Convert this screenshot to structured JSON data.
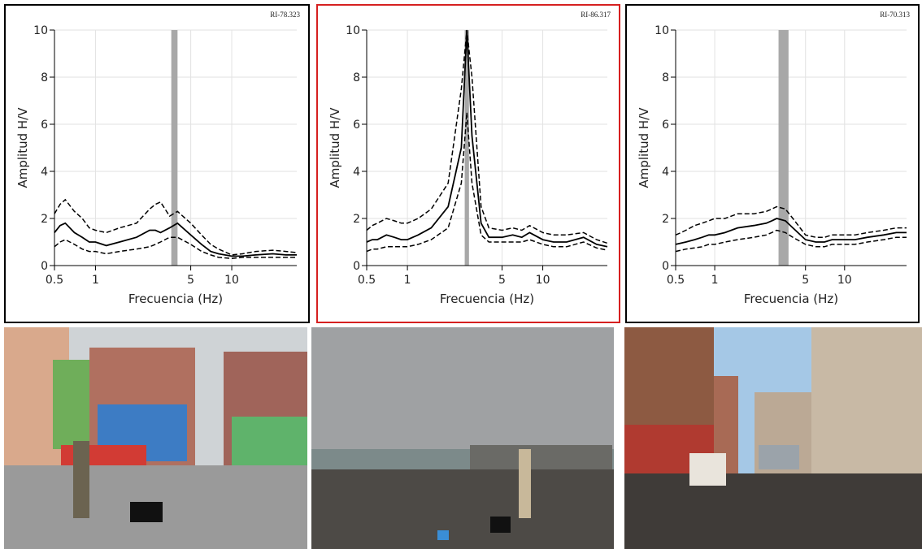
{
  "chart_data": [
    {
      "type": "line",
      "annotation": "RI-78.323",
      "x_label": "Frecuencia (Hz)",
      "y_label": "Amplitud H/V",
      "xscale": "log",
      "xlim": [
        0.5,
        30
      ],
      "xticks": [
        0.5,
        1,
        5,
        10
      ],
      "ylim": [
        0,
        10
      ],
      "yticks": [
        0,
        2,
        4,
        6,
        8,
        10
      ],
      "grid": true,
      "frame_color": "#000000",
      "band": [
        3.6,
        4.0
      ],
      "band_color": "#a8a8a8",
      "x": [
        0.5,
        0.55,
        0.6,
        0.7,
        0.8,
        0.9,
        1,
        1.2,
        1.5,
        2,
        2.5,
        2.75,
        3,
        3.5,
        4,
        5,
        6,
        7,
        8,
        10,
        12,
        15,
        20,
        25,
        30
      ],
      "series": [
        {
          "color": "#000000",
          "dash": false,
          "values": [
            1.4,
            1.7,
            1.8,
            1.4,
            1.2,
            1.0,
            1.0,
            0.85,
            1.0,
            1.2,
            1.5,
            1.5,
            1.4,
            1.6,
            1.8,
            1.3,
            0.9,
            0.6,
            0.5,
            0.4,
            0.4,
            0.45,
            0.5,
            0.45,
            0.45
          ]
        },
        {
          "color": "#000000",
          "dash": true,
          "values": [
            2.2,
            2.6,
            2.8,
            2.3,
            2.0,
            1.6,
            1.5,
            1.4,
            1.6,
            1.8,
            2.4,
            2.6,
            2.7,
            2.1,
            2.3,
            1.8,
            1.3,
            0.9,
            0.7,
            0.45,
            0.5,
            0.6,
            0.65,
            0.6,
            0.55
          ]
        },
        {
          "color": "#000000",
          "dash": true,
          "values": [
            0.8,
            1.0,
            1.1,
            0.9,
            0.7,
            0.6,
            0.6,
            0.5,
            0.6,
            0.7,
            0.8,
            0.9,
            1.0,
            1.2,
            1.2,
            0.9,
            0.6,
            0.45,
            0.35,
            0.3,
            0.35,
            0.35,
            0.35,
            0.35,
            0.35
          ]
        }
      ]
    },
    {
      "type": "line",
      "annotation": "RI-86.317",
      "x_label": "Frecuencia (Hz)",
      "y_label": "Amplitud H/V",
      "xscale": "log",
      "xlim": [
        0.5,
        30
      ],
      "xticks": [
        0.5,
        1,
        5,
        10
      ],
      "ylim": [
        0,
        10
      ],
      "yticks": [
        0,
        2,
        4,
        6,
        8,
        10
      ],
      "grid": true,
      "frame_color": "#d62020",
      "band": [
        2.65,
        2.85
      ],
      "band_color": "#a8a8a8",
      "x": [
        0.5,
        0.55,
        0.6,
        0.7,
        0.8,
        0.9,
        1,
        1.2,
        1.5,
        2,
        2.5,
        2.75,
        3,
        3.5,
        4,
        5,
        6,
        7,
        8,
        10,
        12,
        15,
        20,
        25,
        30
      ],
      "series": [
        {
          "color": "#000000",
          "dash": false,
          "values": [
            1.0,
            1.1,
            1.1,
            1.3,
            1.2,
            1.1,
            1.1,
            1.3,
            1.6,
            2.5,
            5.0,
            10,
            5.5,
            1.8,
            1.2,
            1.2,
            1.3,
            1.2,
            1.4,
            1.1,
            1.0,
            1.0,
            1.2,
            0.9,
            0.8
          ]
        },
        {
          "color": "#000000",
          "dash": true,
          "values": [
            1.5,
            1.7,
            1.8,
            2.0,
            1.9,
            1.8,
            1.8,
            2.0,
            2.4,
            3.5,
            7.5,
            10,
            8,
            2.5,
            1.6,
            1.5,
            1.6,
            1.5,
            1.7,
            1.4,
            1.3,
            1.3,
            1.4,
            1.1,
            0.95
          ]
        },
        {
          "color": "#000000",
          "dash": true,
          "values": [
            0.6,
            0.7,
            0.7,
            0.8,
            0.8,
            0.8,
            0.8,
            0.9,
            1.1,
            1.6,
            3.5,
            6.5,
            3.5,
            1.3,
            1.0,
            1.0,
            1.0,
            1.0,
            1.1,
            0.9,
            0.8,
            0.8,
            1.0,
            0.75,
            0.65
          ]
        }
      ]
    },
    {
      "type": "line",
      "annotation": "RI-70.313",
      "x_label": "Frecuencia (Hz)",
      "y_label": "Amplitud H/V",
      "xscale": "log",
      "xlim": [
        0.5,
        30
      ],
      "xticks": [
        0.5,
        1,
        5,
        10
      ],
      "ylim": [
        0,
        10
      ],
      "yticks": [
        0,
        2,
        4,
        6,
        8,
        10
      ],
      "grid": true,
      "frame_color": "#000000",
      "band": [
        3.1,
        3.7
      ],
      "band_color": "#a8a8a8",
      "x": [
        0.5,
        0.55,
        0.6,
        0.7,
        0.8,
        0.9,
        1,
        1.2,
        1.5,
        2,
        2.5,
        2.75,
        3,
        3.5,
        4,
        5,
        6,
        7,
        8,
        10,
        12,
        15,
        20,
        25,
        30
      ],
      "series": [
        {
          "color": "#000000",
          "dash": false,
          "values": [
            0.9,
            0.95,
            1.0,
            1.1,
            1.2,
            1.3,
            1.3,
            1.4,
            1.6,
            1.7,
            1.8,
            1.9,
            2.0,
            1.9,
            1.6,
            1.1,
            1.0,
            1.0,
            1.1,
            1.1,
            1.1,
            1.2,
            1.3,
            1.4,
            1.4
          ]
        },
        {
          "color": "#000000",
          "dash": true,
          "values": [
            1.3,
            1.4,
            1.5,
            1.7,
            1.8,
            1.9,
            2.0,
            2.0,
            2.2,
            2.2,
            2.3,
            2.4,
            2.5,
            2.4,
            2.0,
            1.3,
            1.2,
            1.2,
            1.3,
            1.3,
            1.3,
            1.4,
            1.5,
            1.6,
            1.6
          ]
        },
        {
          "color": "#000000",
          "dash": true,
          "values": [
            0.6,
            0.65,
            0.7,
            0.75,
            0.8,
            0.9,
            0.9,
            1.0,
            1.1,
            1.2,
            1.3,
            1.4,
            1.5,
            1.4,
            1.2,
            0.9,
            0.8,
            0.8,
            0.9,
            0.9,
            0.9,
            1.0,
            1.1,
            1.2,
            1.2
          ]
        }
      ]
    }
  ]
}
